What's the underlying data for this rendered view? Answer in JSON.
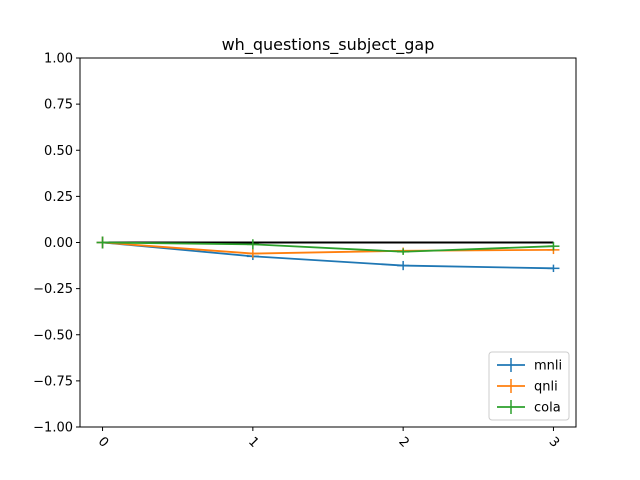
{
  "chart_data": {
    "type": "line",
    "title": "wh_questions_subject_gap",
    "xlabel": "",
    "ylabel": "",
    "x": [
      0,
      1,
      2,
      3
    ],
    "x_tick_labels": [
      "0",
      "1",
      "2",
      "3"
    ],
    "y_ticks": [
      -1.0,
      -0.75,
      -0.5,
      -0.25,
      0.0,
      0.25,
      0.5,
      0.75,
      1.0
    ],
    "y_tick_labels": [
      "−1.00",
      "−0.75",
      "−0.50",
      "−0.25",
      "0.00",
      "0.25",
      "0.50",
      "0.75",
      "1.00"
    ],
    "xlim": [
      -0.15,
      3.15
    ],
    "ylim": [
      -1.0,
      1.0
    ],
    "grid": false,
    "legend_position": "lower-right",
    "baseline": {
      "y": 0.0,
      "color": "#000000"
    },
    "series": [
      {
        "name": "mnli",
        "color": "#1f77b4",
        "values": [
          0.0,
          -0.075,
          -0.125,
          -0.14
        ],
        "errors": [
          0.0,
          0.02,
          0.025,
          0.02
        ]
      },
      {
        "name": "qnli",
        "color": "#ff7f0e",
        "values": [
          0.0,
          -0.06,
          -0.045,
          -0.04
        ],
        "errors": [
          0.0,
          0.01,
          0.015,
          0.01
        ]
      },
      {
        "name": "cola",
        "color": "#2ca02c",
        "values": [
          0.0,
          -0.01,
          -0.05,
          -0.02
        ],
        "errors": [
          0.0,
          0.005,
          0.015,
          0.01
        ]
      }
    ]
  }
}
